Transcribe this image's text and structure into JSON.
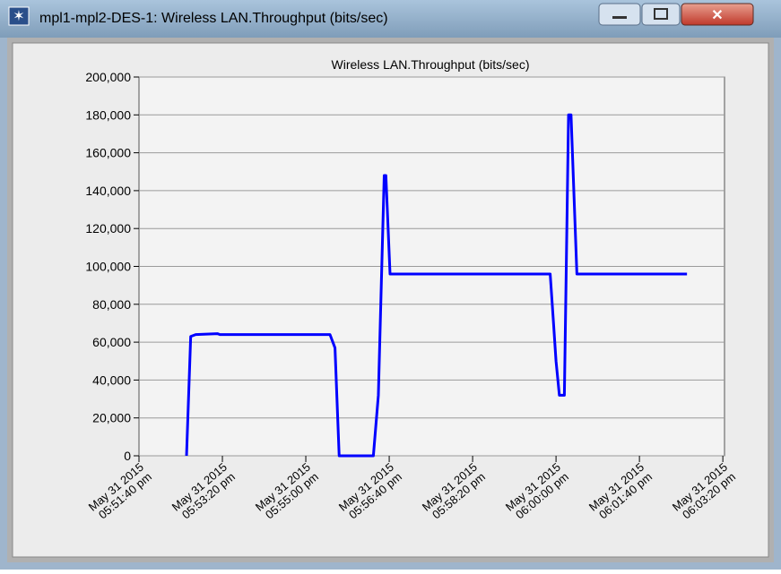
{
  "window": {
    "title": "mpl1-mpl2-DES-1: Wireless LAN.Throughput (bits/sec)"
  },
  "chart_data": {
    "type": "line",
    "title": "Wireless LAN.Throughput (bits/sec)",
    "x": [
      "2015-05-31T17:52:37",
      "2015-05-31T17:52:42",
      "2015-05-31T17:52:48",
      "2015-05-31T17:53:14",
      "2015-05-31T17:53:17",
      "2015-05-31T17:55:29",
      "2015-05-31T17:55:35",
      "2015-05-31T17:55:40",
      "2015-05-31T17:56:21",
      "2015-05-31T17:56:27",
      "2015-05-31T17:56:34",
      "2015-05-31T17:56:36",
      "2015-05-31T17:56:41",
      "2015-05-31T17:59:53",
      "2015-05-31T17:59:57",
      "2015-05-31T18:00:00",
      "2015-05-31T18:00:04",
      "2015-05-31T18:00:10",
      "2015-05-31T18:00:15",
      "2015-05-31T18:00:18",
      "2015-05-31T18:00:25",
      "2015-05-31T18:02:37"
    ],
    "series": [
      {
        "name": "Wireless LAN.Throughput (bits/sec)",
        "color": "#0000ff",
        "values": [
          0,
          63000,
          64000,
          64500,
          64000,
          64000,
          57000,
          0,
          0,
          32000,
          148000,
          148000,
          96000,
          96000,
          70000,
          50000,
          32000,
          32000,
          180000,
          180000,
          96000,
          96000
        ]
      }
    ],
    "xlim": [
      "2015-05-31T17:51:40",
      "2015-05-31T18:03:22"
    ],
    "xticks": [
      {
        "value": "2015-05-31T17:51:40",
        "label": "May 31 2015\n05:51:40 pm"
      },
      {
        "value": "2015-05-31T17:53:20",
        "label": "May 31 2015\n05:53:20 pm"
      },
      {
        "value": "2015-05-31T17:55:00",
        "label": "May 31 2015\n05:55:00 pm"
      },
      {
        "value": "2015-05-31T17:56:40",
        "label": "May 31 2015\n05:56:40 pm"
      },
      {
        "value": "2015-05-31T17:58:20",
        "label": "May 31 2015\n05:58:20 pm"
      },
      {
        "value": "2015-05-31T18:00:00",
        "label": "May 31 2015\n06:00:00 pm"
      },
      {
        "value": "2015-05-31T18:01:40",
        "label": "May 31 2015\n06:01:40 pm"
      },
      {
        "value": "2015-05-31T18:03:20",
        "label": "May 31 2015\n06:03:20 pm"
      }
    ],
    "ylim": [
      0,
      200000
    ],
    "yticks": [
      0,
      {
        "value": 20000,
        "label": "20,000"
      },
      {
        "value": 40000,
        "label": "40,000"
      },
      {
        "value": 60000,
        "label": "60,000"
      },
      {
        "value": 80000,
        "label": "80,000"
      },
      {
        "value": 100000,
        "label": "100,000"
      },
      {
        "value": 120000,
        "label": "120,000"
      },
      {
        "value": 140000,
        "label": "140,000"
      },
      {
        "value": 160000,
        "label": "160,000"
      },
      {
        "value": 180000,
        "label": "180,000"
      },
      {
        "value": 200000,
        "label": "200,000"
      }
    ],
    "grid": true
  }
}
